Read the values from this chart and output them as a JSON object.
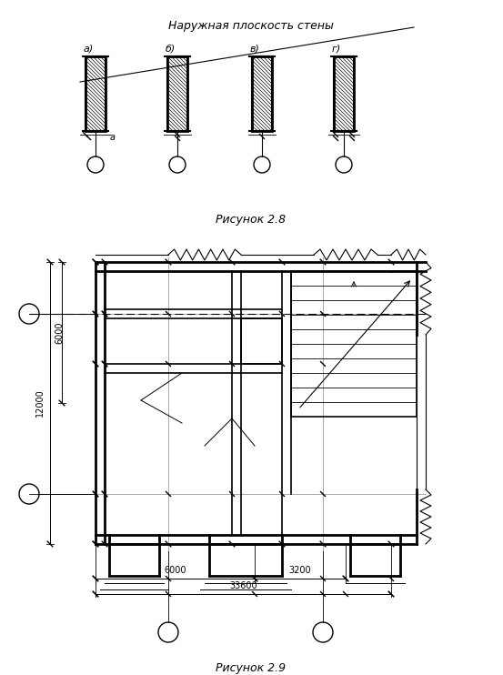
{
  "title_top": "Наружная плоскость стены",
  "caption_fig28": "Рисунок 2.8",
  "caption_fig29": "Рисунок 2.9",
  "labels_fig28": [
    "а)",
    "б)",
    "в)",
    "г)"
  ],
  "label_a": "а",
  "bg_color": "#ffffff",
  "line_color": "#000000",
  "text_color": "#000000",
  "fig_width": 5.53,
  "fig_height": 7.42
}
